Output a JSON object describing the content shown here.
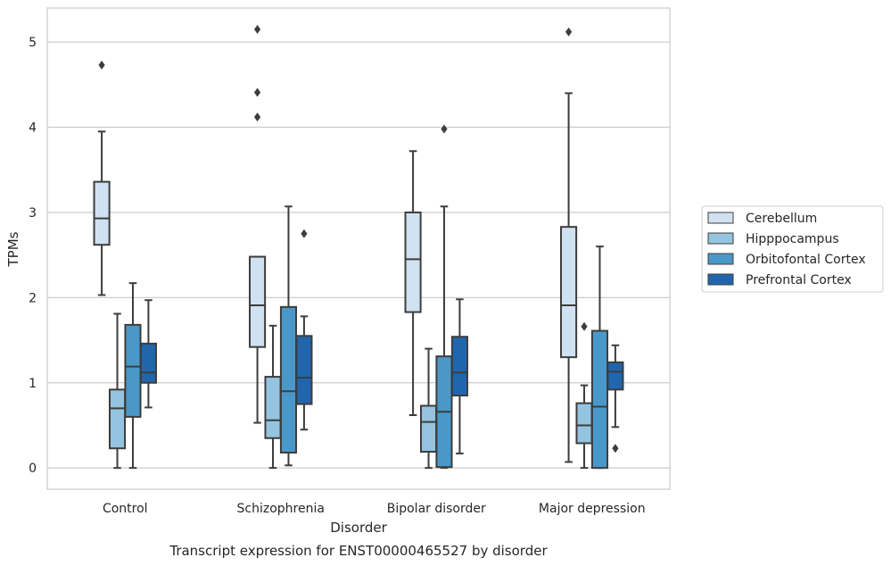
{
  "chart_data": {
    "type": "boxplot",
    "caption": "Transcript expression for ENST00000465527 by disorder",
    "xlabel": "Disorder",
    "ylabel": "TPMs",
    "ylim": [
      -0.25,
      5.4
    ],
    "yticks": [
      0,
      1,
      2,
      3,
      4,
      5
    ],
    "grid": "horizontal",
    "legend_position": "right",
    "categories": [
      "Control",
      "Schizophrenia",
      "Bipolar disorder",
      "Major depression"
    ],
    "series": [
      {
        "name": "Cerebellum",
        "color": "#d0e1f2",
        "boxes": [
          {
            "whislo": 2.03,
            "q1": 2.62,
            "med": 2.93,
            "q3": 3.36,
            "whishi": 3.95,
            "fliers": [
              4.73
            ]
          },
          {
            "whislo": 0.53,
            "q1": 1.42,
            "med": 1.91,
            "q3": 2.48,
            "whishi": 2.48,
            "fliers": [
              5.15,
              4.41,
              4.12
            ]
          },
          {
            "whislo": 0.62,
            "q1": 1.83,
            "med": 2.45,
            "q3": 3.0,
            "whishi": 3.72,
            "fliers": []
          },
          {
            "whislo": 0.07,
            "q1": 1.3,
            "med": 1.91,
            "q3": 2.83,
            "whishi": 4.4,
            "fliers": [
              5.12
            ]
          }
        ]
      },
      {
        "name": "Hipppocampus",
        "color": "#94c4df",
        "boxes": [
          {
            "whislo": 0.0,
            "q1": 0.23,
            "med": 0.7,
            "q3": 0.92,
            "whishi": 1.81,
            "fliers": []
          },
          {
            "whislo": 0.0,
            "q1": 0.35,
            "med": 0.56,
            "q3": 1.07,
            "whishi": 1.67,
            "fliers": []
          },
          {
            "whislo": 0.0,
            "q1": 0.19,
            "med": 0.54,
            "q3": 0.73,
            "whishi": 1.4,
            "fliers": []
          },
          {
            "whislo": 0.0,
            "q1": 0.29,
            "med": 0.5,
            "q3": 0.76,
            "whishi": 0.97,
            "fliers": [
              1.66
            ]
          }
        ]
      },
      {
        "name": "Orbitofontal Cortex",
        "color": "#4a98c9",
        "boxes": [
          {
            "whislo": 0.0,
            "q1": 0.6,
            "med": 1.19,
            "q3": 1.68,
            "whishi": 2.17,
            "fliers": []
          },
          {
            "whislo": 0.03,
            "q1": 0.18,
            "med": 0.9,
            "q3": 1.89,
            "whishi": 3.07,
            "fliers": []
          },
          {
            "whislo": 0.0,
            "q1": 0.01,
            "med": 0.66,
            "q3": 1.31,
            "whishi": 3.07,
            "fliers": [
              3.98
            ]
          },
          {
            "whislo": 0.0,
            "q1": 0.0,
            "med": 0.72,
            "q3": 1.61,
            "whishi": 2.6,
            "fliers": []
          }
        ]
      },
      {
        "name": "Prefrontal Cortex",
        "color": "#2166ac",
        "boxes": [
          {
            "whislo": 0.71,
            "q1": 1.0,
            "med": 1.12,
            "q3": 1.46,
            "whishi": 1.97,
            "fliers": []
          },
          {
            "whislo": 0.45,
            "q1": 0.75,
            "med": 1.06,
            "q3": 1.55,
            "whishi": 1.78,
            "fliers": [
              2.75
            ]
          },
          {
            "whislo": 0.17,
            "q1": 0.85,
            "med": 1.12,
            "q3": 1.54,
            "whishi": 1.98,
            "fliers": []
          },
          {
            "whislo": 0.48,
            "q1": 0.92,
            "med": 1.13,
            "q3": 1.24,
            "whishi": 1.44,
            "fliers": [
              0.23
            ]
          }
        ]
      }
    ]
  }
}
